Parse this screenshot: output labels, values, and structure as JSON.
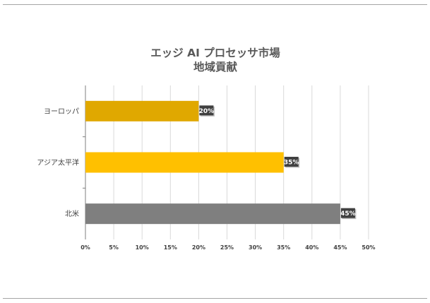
{
  "chart_data": {
    "type": "bar",
    "orientation": "horizontal",
    "title_lines": [
      "エッジ AI プロセッサ市場",
      "地域貢献"
    ],
    "categories": [
      "ヨーロッパ",
      "アジア太平洋",
      "北米"
    ],
    "values": [
      20,
      35,
      45
    ],
    "data_labels": [
      "20%",
      "35%",
      "45%"
    ],
    "bar_colors": [
      "#e0a800",
      "#ffc000",
      "#7f7f7f"
    ],
    "xlim": [
      0,
      50
    ],
    "x_ticks": [
      "0%",
      "5%",
      "10%",
      "15%",
      "20%",
      "25%",
      "30%",
      "35%",
      "40%",
      "45%",
      "50%"
    ],
    "grid": true,
    "xlabel": "",
    "ylabel": ""
  }
}
